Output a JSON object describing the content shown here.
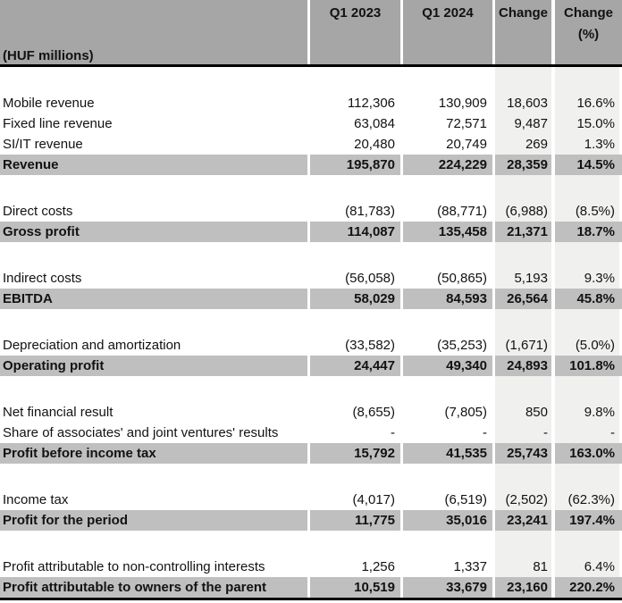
{
  "colors": {
    "header_bg": "#A6A6A6",
    "total_row_bg": "#BFBFBF",
    "change_column_bg": "#F0F0EF",
    "border": "#000000",
    "text": "#121212",
    "background": "#FFFFFF"
  },
  "table": {
    "header": {
      "unit_label": "(HUF millions)",
      "col_q1_2023": "Q1 2023",
      "col_q1_2024": "Q1 2024",
      "col_change": "Change",
      "col_change_pct_line1": "Change",
      "col_change_pct_line2": "(%)"
    },
    "rows": [
      {
        "type": "spacer"
      },
      {
        "type": "data",
        "label": "Mobile revenue",
        "q1_2023": "112,306",
        "q1_2024": "130,909",
        "change": "18,603",
        "change_pct": "16.6%"
      },
      {
        "type": "data",
        "label": "Fixed line revenue",
        "q1_2023": "63,084",
        "q1_2024": "72,571",
        "change": "9,487",
        "change_pct": "15.0%"
      },
      {
        "type": "data",
        "label": "SI/IT revenue",
        "q1_2023": "20,480",
        "q1_2024": "20,749",
        "change": "269",
        "change_pct": "1.3%"
      },
      {
        "type": "total",
        "label": "Revenue",
        "q1_2023": "195,870",
        "q1_2024": "224,229",
        "change": "28,359",
        "change_pct": "14.5%"
      },
      {
        "type": "spacer"
      },
      {
        "type": "data",
        "label": "Direct costs",
        "q1_2023": "(81,783)",
        "q1_2024": "(88,771)",
        "change": "(6,988)",
        "change_pct": "(8.5%)"
      },
      {
        "type": "total",
        "label": "Gross profit",
        "q1_2023": "114,087",
        "q1_2024": "135,458",
        "change": "21,371",
        "change_pct": "18.7%"
      },
      {
        "type": "spacer"
      },
      {
        "type": "data",
        "label": "Indirect costs",
        "q1_2023": "(56,058)",
        "q1_2024": "(50,865)",
        "change": "5,193",
        "change_pct": "9.3%"
      },
      {
        "type": "total",
        "label": "EBITDA",
        "q1_2023": "58,029",
        "q1_2024": "84,593",
        "change": "26,564",
        "change_pct": "45.8%"
      },
      {
        "type": "spacer"
      },
      {
        "type": "data",
        "label": "Depreciation and amortization",
        "q1_2023": "(33,582)",
        "q1_2024": "(35,253)",
        "change": "(1,671)",
        "change_pct": "(5.0%)"
      },
      {
        "type": "total",
        "label": "Operating profit",
        "q1_2023": "24,447",
        "q1_2024": "49,340",
        "change": "24,893",
        "change_pct": "101.8%"
      },
      {
        "type": "spacer"
      },
      {
        "type": "data",
        "label": "Net financial result",
        "q1_2023": "(8,655)",
        "q1_2024": "(7,805)",
        "change": "850",
        "change_pct": "9.8%"
      },
      {
        "type": "data",
        "label": "Share of associates' and joint ventures' results",
        "q1_2023": "-",
        "q1_2024": "-",
        "change": "-",
        "change_pct": "-"
      },
      {
        "type": "total",
        "label": "Profit before income tax",
        "q1_2023": "15,792",
        "q1_2024": "41,535",
        "change": "25,743",
        "change_pct": "163.0%"
      },
      {
        "type": "spacer"
      },
      {
        "type": "data",
        "label": "Income tax",
        "q1_2023": "(4,017)",
        "q1_2024": "(6,519)",
        "change": "(2,502)",
        "change_pct": "(62.3%)"
      },
      {
        "type": "total",
        "label": "Profit for the period",
        "q1_2023": "11,775",
        "q1_2024": "35,016",
        "change": "23,241",
        "change_pct": "197.4%"
      },
      {
        "type": "spacer"
      },
      {
        "type": "data",
        "label": "Profit attributable to non-controlling interests",
        "q1_2023": "1,256",
        "q1_2024": "1,337",
        "change": "81",
        "change_pct": "6.4%"
      },
      {
        "type": "total",
        "label": "Profit attributable to owners of the parent",
        "q1_2023": "10,519",
        "q1_2024": "33,679",
        "change": "23,160",
        "change_pct": "220.2%"
      }
    ]
  }
}
